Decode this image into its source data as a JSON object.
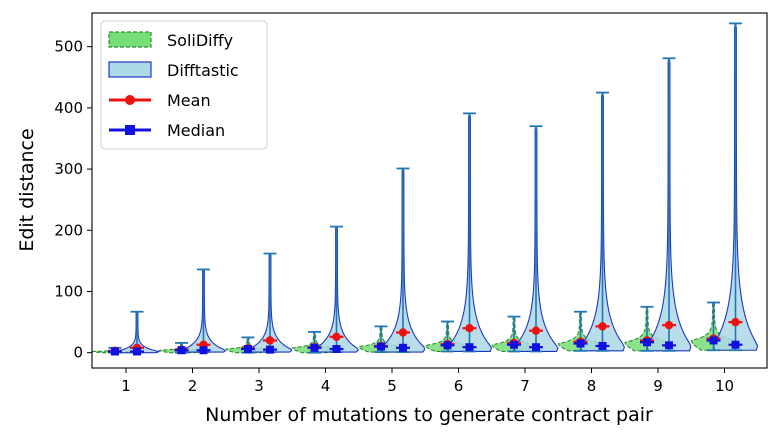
{
  "chart_data": {
    "type": "violin",
    "xlabel": "Number of mutations to generate contract pair",
    "ylabel": "Edit distance",
    "categories": [
      "1",
      "2",
      "3",
      "4",
      "5",
      "6",
      "7",
      "8",
      "9",
      "10"
    ],
    "ylim": [
      -25,
      555
    ],
    "yticks": [
      0,
      100,
      200,
      300,
      400,
      500
    ],
    "grid": false,
    "legend_position": "top-left",
    "legend": [
      "SoliDiffy",
      "Difftastic",
      "Mean",
      "Median"
    ],
    "colors": {
      "solidiffy_fill": "#77dd77",
      "solidiffy_edge": "#2e8b2e",
      "difftastic_fill": "#add8e6",
      "difftastic_edge": "#1f35c4",
      "whisker": "#1f77b4",
      "mean": "#ee1111",
      "median": "#1111dd"
    },
    "series": [
      {
        "name": "SoliDiffy",
        "min": [
          0,
          0,
          0,
          0,
          1,
          2,
          2,
          3,
          3,
          4
        ],
        "max": [
          8,
          16,
          25,
          34,
          43,
          51,
          59,
          67,
          75,
          82
        ],
        "mean": [
          3,
          5,
          7,
          9,
          11,
          14,
          16,
          18,
          20,
          23
        ],
        "median": [
          2,
          4,
          6,
          8,
          10,
          12,
          13,
          15,
          17,
          20
        ]
      },
      {
        "name": "Difftastic",
        "min": [
          0,
          1,
          1,
          1,
          1,
          2,
          2,
          3,
          3,
          4
        ],
        "max": [
          67,
          136,
          162,
          206,
          301,
          391,
          370,
          425,
          481,
          538
        ],
        "mean": [
          8,
          13,
          20,
          26,
          33,
          40,
          36,
          43,
          45,
          50
        ],
        "median": [
          2,
          4,
          5,
          6,
          8,
          9,
          9,
          11,
          12,
          13
        ]
      }
    ]
  }
}
